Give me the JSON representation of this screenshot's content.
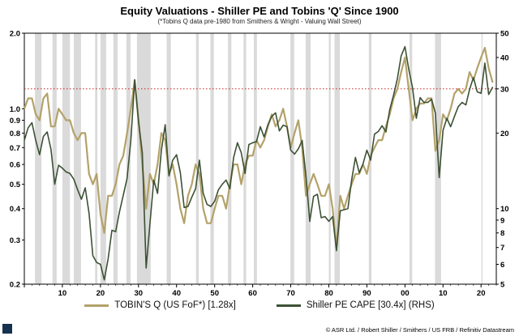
{
  "header": {
    "title": "Equity Valuations - Shiller PE and Tobins 'Q' Since 1900",
    "subtitle": "(*Tobins Q data pre-1980 from Smithers & Wright - Valuing Wall Street)"
  },
  "legend": {
    "items": [
      {
        "label": "TOBIN'S Q (US FoF*) [1.28x]",
        "color": "#b3a269"
      },
      {
        "label": "Shiller PE CAPE [30.4x] (RHS)",
        "color": "#3c5134"
      }
    ]
  },
  "footer": {
    "source": "© ASR Ltd. / Robert Shiller / Smithers / US FRB / Refinitiv Datastream"
  },
  "chart_data": {
    "type": "line",
    "title": "Equity Valuations - Shiller PE and Tobins 'Q' Since 1900",
    "subtitle": "(*Tobins Q data pre-1980 from Smithers & Wright - Valuing Wall Street)",
    "x_range": [
      1900,
      2024
    ],
    "x_ticks": [
      {
        "year": 1910,
        "label": "10"
      },
      {
        "year": 1920,
        "label": "20"
      },
      {
        "year": 1930,
        "label": "30"
      },
      {
        "year": 1940,
        "label": "40"
      },
      {
        "year": 1950,
        "label": "50"
      },
      {
        "year": 1960,
        "label": "60"
      },
      {
        "year": 1970,
        "label": "70"
      },
      {
        "year": 1980,
        "label": "80"
      },
      {
        "year": 1990,
        "label": "90"
      },
      {
        "year": 2000,
        "label": "00"
      },
      {
        "year": 2010,
        "label": "10"
      },
      {
        "year": 2020,
        "label": "20"
      }
    ],
    "left_axis": {
      "scale": "log",
      "range": [
        0.2,
        2.0
      ],
      "ticks": [
        2.0,
        1.0,
        0.9,
        0.8,
        0.7,
        0.6,
        0.5,
        0.4,
        0.3,
        0.2
      ],
      "series": "TOBIN'S Q (US FoF*)"
    },
    "right_axis": {
      "scale": "log",
      "range": [
        5,
        50
      ],
      "ticks": [
        50,
        40,
        30,
        20,
        10,
        9,
        8,
        7,
        6,
        5
      ],
      "series": "Shiller PE CAPE"
    },
    "reference_line": {
      "axis": "right",
      "value": 30,
      "style": "dotted",
      "color": "#cc2222"
    },
    "grid": false,
    "legend_position": "bottom",
    "years": [
      1900,
      1901,
      1902,
      1903,
      1904,
      1905,
      1906,
      1907,
      1908,
      1909,
      1910,
      1911,
      1912,
      1913,
      1914,
      1915,
      1916,
      1917,
      1918,
      1919,
      1920,
      1921,
      1922,
      1923,
      1924,
      1925,
      1926,
      1927,
      1928,
      1929,
      1930,
      1931,
      1932,
      1933,
      1934,
      1935,
      1936,
      1937,
      1938,
      1939,
      1940,
      1941,
      1942,
      1943,
      1944,
      1945,
      1946,
      1947,
      1948,
      1949,
      1950,
      1951,
      1952,
      1953,
      1954,
      1955,
      1956,
      1957,
      1958,
      1959,
      1960,
      1961,
      1962,
      1963,
      1964,
      1965,
      1966,
      1967,
      1968,
      1969,
      1970,
      1971,
      1972,
      1973,
      1974,
      1975,
      1976,
      1977,
      1978,
      1979,
      1980,
      1981,
      1982,
      1983,
      1984,
      1985,
      1986,
      1987,
      1988,
      1989,
      1990,
      1991,
      1992,
      1993,
      1994,
      1995,
      1996,
      1997,
      1998,
      1999,
      2000,
      2001,
      2002,
      2003,
      2004,
      2005,
      2006,
      2007,
      2008,
      2009,
      2010,
      2011,
      2012,
      2013,
      2014,
      2015,
      2016,
      2017,
      2018,
      2019,
      2020,
      2021,
      2022,
      2023
    ],
    "series": [
      {
        "name": "TOBIN'S Q (US FoF*)",
        "axis": "left",
        "color": "#b3a269",
        "width": 2.2,
        "latest": 1.28,
        "values": [
          1.0,
          1.1,
          1.1,
          0.95,
          0.9,
          1.1,
          1.15,
          0.85,
          0.85,
          1.0,
          0.95,
          0.9,
          0.9,
          0.8,
          0.75,
          0.8,
          0.8,
          0.55,
          0.5,
          0.55,
          0.38,
          0.32,
          0.45,
          0.45,
          0.5,
          0.6,
          0.65,
          0.8,
          1.0,
          1.3,
          0.9,
          0.6,
          0.4,
          0.55,
          0.5,
          0.6,
          0.8,
          0.75,
          0.55,
          0.6,
          0.5,
          0.4,
          0.35,
          0.45,
          0.5,
          0.6,
          0.55,
          0.4,
          0.35,
          0.35,
          0.4,
          0.45,
          0.45,
          0.4,
          0.5,
          0.6,
          0.6,
          0.5,
          0.6,
          0.65,
          0.65,
          0.75,
          0.7,
          0.75,
          0.85,
          0.95,
          0.85,
          0.9,
          1.0,
          0.85,
          0.7,
          0.8,
          0.9,
          0.7,
          0.45,
          0.5,
          0.55,
          0.5,
          0.45,
          0.45,
          0.5,
          0.4,
          0.28,
          0.45,
          0.4,
          0.45,
          0.5,
          0.55,
          0.55,
          0.6,
          0.55,
          0.65,
          0.7,
          0.75,
          0.75,
          0.85,
          0.95,
          1.1,
          1.2,
          1.4,
          1.6,
          1.2,
          0.9,
          1.0,
          1.05,
          1.05,
          1.1,
          1.1,
          0.68,
          0.75,
          0.95,
          0.9,
          1.0,
          1.15,
          1.2,
          1.15,
          1.2,
          1.4,
          1.3,
          1.45,
          1.6,
          1.75,
          1.45,
          1.28
        ]
      },
      {
        "name": "Shiller PE CAPE",
        "axis": "right",
        "color": "#3c5134",
        "width": 1.6,
        "latest": 30.4,
        "values": [
          18.7,
          21.0,
          22.0,
          18.7,
          16.4,
          19.4,
          20.2,
          17.2,
          12.5,
          14.9,
          14.5,
          14.0,
          13.8,
          13.1,
          11.9,
          10.9,
          12.1,
          9.6,
          6.5,
          6.1,
          6.0,
          5.2,
          6.3,
          8.2,
          8.1,
          9.7,
          11.3,
          13.2,
          18.8,
          32.6,
          22.3,
          16.7,
          5.8,
          8.7,
          13.0,
          11.5,
          17.1,
          21.6,
          13.5,
          15.6,
          16.4,
          13.9,
          10.1,
          10.2,
          11.1,
          12.0,
          15.6,
          11.5,
          10.4,
          10.2,
          10.7,
          11.9,
          12.5,
          13.0,
          12.0,
          16.0,
          18.3,
          16.7,
          13.8,
          18.0,
          18.3,
          18.5,
          21.2,
          19.3,
          21.6,
          23.3,
          24.1,
          20.4,
          21.5,
          21.2,
          17.1,
          16.5,
          17.3,
          18.7,
          13.5,
          8.9,
          11.2,
          11.4,
          9.2,
          9.3,
          8.9,
          9.3,
          6.8,
          9.8,
          9.9,
          10.0,
          13.0,
          16.0,
          13.9,
          15.1,
          17.1,
          15.6,
          19.8,
          20.3,
          21.4,
          20.2,
          24.8,
          28.3,
          32.9,
          40.6,
          44.2,
          36.0,
          30.3,
          22.9,
          27.7,
          26.5,
          26.5,
          27.3,
          24.0,
          13.3,
          20.5,
          22.9,
          21.2,
          23.3,
          25.5,
          26.5,
          25.9,
          29.9,
          33.3,
          29.2,
          28.8,
          38.0,
          28.5,
          30.4
        ]
      }
    ],
    "recessions": [
      [
        1902.8,
        1904.5
      ],
      [
        1907.4,
        1908.5
      ],
      [
        1910.0,
        1912.0
      ],
      [
        1913.0,
        1914.9
      ],
      [
        1918.6,
        1919.2
      ],
      [
        1920.0,
        1921.5
      ],
      [
        1923.4,
        1924.5
      ],
      [
        1926.8,
        1927.9
      ],
      [
        1929.6,
        1933.2
      ],
      [
        1937.4,
        1938.5
      ],
      [
        1945.1,
        1945.8
      ],
      [
        1948.9,
        1949.8
      ],
      [
        1953.5,
        1954.4
      ],
      [
        1957.6,
        1958.3
      ],
      [
        1960.3,
        1961.1
      ],
      [
        1969.9,
        1970.9
      ],
      [
        1973.9,
        1975.2
      ],
      [
        1980.0,
        1980.5
      ],
      [
        1981.5,
        1982.9
      ],
      [
        1990.5,
        1991.2
      ],
      [
        2001.2,
        2001.9
      ],
      [
        2007.9,
        2009.5
      ],
      [
        2020.1,
        2020.4
      ]
    ]
  }
}
